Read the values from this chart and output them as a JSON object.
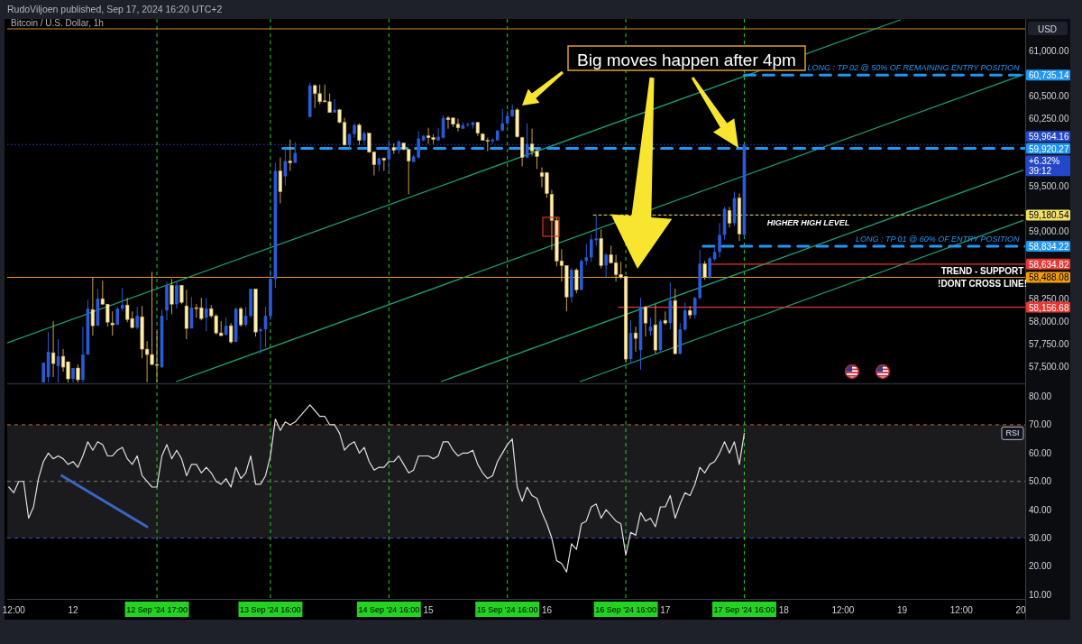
{
  "chart_data": [
    {
      "type": "candlestick",
      "title": "Bitcoin / U.S. Dollar, 1h",
      "ylabel": "USD",
      "x": [
        "2024-09-11T18:00",
        "2024-09-11T19:00",
        "2024-09-11T20:00",
        "2024-09-11T21:00",
        "2024-09-11T22:00",
        "2024-09-11T23:00",
        "2024-09-12T00:00",
        "2024-09-12T01:00",
        "2024-09-12T02:00",
        "2024-09-12T03:00",
        "2024-09-12T04:00",
        "2024-09-12T05:00",
        "2024-09-12T06:00",
        "2024-09-12T07:00",
        "2024-09-12T08:00",
        "2024-09-12T09:00",
        "2024-09-12T10:00",
        "2024-09-12T11:00",
        "2024-09-12T12:00",
        "2024-09-12T13:00",
        "2024-09-12T14:00",
        "2024-09-12T15:00",
        "2024-09-12T16:00",
        "2024-09-12T17:00",
        "2024-09-12T18:00",
        "2024-09-12T19:00",
        "2024-09-12T20:00",
        "2024-09-12T21:00",
        "2024-09-12T22:00",
        "2024-09-12T23:00",
        "2024-09-13T00:00",
        "2024-09-13T01:00",
        "2024-09-13T02:00",
        "2024-09-13T03:00",
        "2024-09-13T04:00",
        "2024-09-13T05:00",
        "2024-09-13T06:00",
        "2024-09-13T07:00",
        "2024-09-13T08:00",
        "2024-09-13T09:00",
        "2024-09-13T10:00",
        "2024-09-13T11:00",
        "2024-09-13T12:00",
        "2024-09-13T13:00",
        "2024-09-13T14:00",
        "2024-09-13T15:00",
        "2024-09-13T16:00",
        "2024-09-13T17:00",
        "2024-09-13T18:00",
        "2024-09-13T19:00",
        "2024-09-13T20:00",
        "2024-09-13T21:00",
        "2024-09-14T00:00",
        "2024-09-14T01:00",
        "2024-09-14T02:00",
        "2024-09-14T03:00",
        "2024-09-14T04:00",
        "2024-09-14T05:00",
        "2024-09-14T06:00",
        "2024-09-14T07:00",
        "2024-09-14T08:00",
        "2024-09-14T09:00",
        "2024-09-14T10:00",
        "2024-09-14T11:00",
        "2024-09-14T12:00",
        "2024-09-14T13:00",
        "2024-09-14T14:00",
        "2024-09-14T15:00",
        "2024-09-14T16:00",
        "2024-09-14T17:00",
        "2024-09-14T18:00",
        "2024-09-14T19:00",
        "2024-09-14T20:00",
        "2024-09-14T21:00",
        "2024-09-14T22:00",
        "2024-09-14T23:00",
        "2024-09-15T00:00",
        "2024-09-15T01:00",
        "2024-09-15T02:00",
        "2024-09-15T03:00",
        "2024-09-15T04:00",
        "2024-09-15T05:00",
        "2024-09-15T06:00",
        "2024-09-15T07:00",
        "2024-09-15T08:00",
        "2024-09-15T09:00",
        "2024-09-15T10:00",
        "2024-09-15T11:00",
        "2024-09-15T12:00",
        "2024-09-15T13:00",
        "2024-09-15T14:00",
        "2024-09-15T15:00",
        "2024-09-15T16:00",
        "2024-09-15T17:00",
        "2024-09-15T18:00",
        "2024-09-15T19:00",
        "2024-09-15T20:00",
        "2024-09-15T21:00",
        "2024-09-15T22:00",
        "2024-09-15T23:00",
        "2024-09-16T00:00",
        "2024-09-16T01:00",
        "2024-09-16T02:00",
        "2024-09-16T03:00",
        "2024-09-16T04:00",
        "2024-09-16T05:00",
        "2024-09-16T06:00",
        "2024-09-16T07:00",
        "2024-09-16T08:00",
        "2024-09-16T09:00",
        "2024-09-16T10:00",
        "2024-09-16T11:00",
        "2024-09-16T12:00",
        "2024-09-16T13:00",
        "2024-09-16T14:00",
        "2024-09-16T15:00",
        "2024-09-16T16:00",
        "2024-09-16T17:00",
        "2024-09-16T18:00",
        "2024-09-16T19:00",
        "2024-09-16T20:00",
        "2024-09-16T21:00",
        "2024-09-16T22:00",
        "2024-09-16T23:00",
        "2024-09-17T00:00",
        "2024-09-17T01:00",
        "2024-09-17T02:00",
        "2024-09-17T03:00",
        "2024-09-17T04:00",
        "2024-09-17T05:00",
        "2024-09-17T06:00",
        "2024-09-17T07:00",
        "2024-09-17T08:00",
        "2024-09-17T09:00",
        "2024-09-17T10:00",
        "2024-09-17T11:00",
        "2024-09-17T12:00",
        "2024-09-17T13:00",
        "2024-09-17T14:00",
        "2024-09-17T15:00",
        "2024-09-17T16:00"
      ],
      "ohlc": [
        [
          57320,
          57540,
          57320,
          57540
        ],
        [
          57380,
          57880,
          57320,
          57660
        ],
        [
          57650,
          58000,
          57380,
          57530
        ],
        [
          57500,
          57800,
          57320,
          57610
        ],
        [
          57610,
          57690,
          57440,
          57490
        ],
        [
          57550,
          57550,
          57320,
          57360
        ],
        [
          57360,
          57480,
          57320,
          57480
        ],
        [
          57480,
          57520,
          57320,
          57350
        ],
        [
          57350,
          57940,
          57320,
          57630
        ],
        [
          57630,
          58240,
          57630,
          58140
        ],
        [
          58130,
          58490,
          57840,
          57950
        ],
        [
          57950,
          58360,
          57950,
          58250
        ],
        [
          58250,
          58450,
          58180,
          58190
        ],
        [
          58190,
          58190,
          57940,
          57990
        ],
        [
          57980,
          58110,
          57840,
          57960
        ],
        [
          57960,
          58160,
          57960,
          58140
        ],
        [
          58140,
          58370,
          58110,
          58180
        ],
        [
          58180,
          58260,
          57990,
          58020
        ],
        [
          58030,
          58110,
          57920,
          57930
        ],
        [
          57930,
          58160,
          57910,
          58060
        ],
        [
          58050,
          58170,
          57590,
          57690
        ],
        [
          57690,
          57780,
          57320,
          57630
        ],
        [
          57630,
          58550,
          57510,
          57520
        ],
        [
          57520,
          57890,
          57320,
          57510
        ],
        [
          57490,
          58130,
          57480,
          58060
        ],
        [
          58120,
          58440,
          58010,
          58400
        ],
        [
          58400,
          58470,
          58080,
          58190
        ],
        [
          58190,
          58450,
          58140,
          58400
        ],
        [
          58400,
          58400,
          58190,
          58210
        ],
        [
          58170,
          58350,
          57800,
          57920
        ],
        [
          57920,
          58270,
          57920,
          58150
        ],
        [
          58150,
          58190,
          58040,
          58140
        ],
        [
          58150,
          58260,
          58010,
          58030
        ],
        [
          58040,
          58260,
          57890,
          58140
        ],
        [
          58140,
          58180,
          58040,
          58060
        ],
        [
          58060,
          58080,
          57850,
          57870
        ],
        [
          57870,
          58000,
          57840,
          57840
        ],
        [
          57850,
          58040,
          57840,
          57950
        ],
        [
          57950,
          57980,
          57750,
          57770
        ],
        [
          57770,
          58150,
          57770,
          58140
        ],
        [
          58140,
          58160,
          57940,
          57960
        ],
        [
          57960,
          58160,
          57940,
          58060
        ],
        [
          58060,
          58360,
          58040,
          58360
        ],
        [
          58360,
          58360,
          57830,
          57880
        ],
        [
          57890,
          57930,
          57640,
          57910
        ],
        [
          57910,
          58160,
          57710,
          58060
        ],
        [
          58060,
          58570,
          58010,
          58470
        ],
        [
          58470,
          59760,
          58370,
          59670
        ],
        [
          59670,
          59820,
          59310,
          59440
        ],
        [
          59610,
          59910,
          59510,
          59780
        ],
        [
          59780,
          60020,
          59670,
          59760
        ],
        [
          59760,
          59990,
          59760,
          59870
        ],
        [
          60270,
          60650,
          60270,
          60620
        ],
        [
          60620,
          60630,
          60370,
          60530
        ],
        [
          60530,
          60630,
          60410,
          60440
        ],
        [
          60450,
          60630,
          60430,
          60440
        ],
        [
          60440,
          60530,
          60320,
          60320
        ],
        [
          60320,
          60470,
          60320,
          60350
        ],
        [
          60350,
          60360,
          60200,
          60210
        ],
        [
          60210,
          60260,
          59950,
          59960
        ],
        [
          59960,
          60090,
          59920,
          60080
        ],
        [
          60080,
          60200,
          60040,
          60180
        ],
        [
          60180,
          60200,
          59960,
          60010
        ],
        [
          60010,
          60110,
          59960,
          60090
        ],
        [
          60090,
          60090,
          59870,
          59880
        ],
        [
          59880,
          59890,
          59620,
          59740
        ],
        [
          59740,
          59820,
          59670,
          59810
        ],
        [
          59810,
          59820,
          59670,
          59790
        ],
        [
          59800,
          60020,
          59670,
          59920
        ],
        [
          59930,
          59980,
          59860,
          59900
        ],
        [
          59900,
          60010,
          59860,
          60000
        ],
        [
          59980,
          59980,
          59900,
          59910
        ],
        [
          59910,
          59910,
          59410,
          59780
        ],
        [
          59770,
          59850,
          59770,
          59830
        ],
        [
          59820,
          60110,
          59810,
          60030
        ],
        [
          60010,
          60070,
          60000,
          60060
        ],
        [
          60060,
          60150,
          59970,
          60040
        ],
        [
          60040,
          60080,
          59970,
          60020
        ],
        [
          60010,
          60150,
          60010,
          60050
        ],
        [
          60040,
          60290,
          60030,
          60260
        ],
        [
          60260,
          60280,
          60140,
          60240
        ],
        [
          60260,
          60260,
          60160,
          60190
        ],
        [
          60190,
          60250,
          60110,
          60150
        ],
        [
          60140,
          60210,
          60140,
          60180
        ],
        [
          60180,
          60210,
          60160,
          60190
        ],
        [
          60180,
          60220,
          60140,
          60210
        ],
        [
          60210,
          60210,
          60060,
          60090
        ],
        [
          60080,
          60090,
          60010,
          60010
        ],
        [
          60010,
          60040,
          59890,
          60000
        ],
        [
          60000,
          60030,
          59970,
          60020
        ],
        [
          60010,
          60120,
          60010,
          60120
        ],
        [
          60120,
          60360,
          60110,
          60200
        ],
        [
          60200,
          60340,
          60170,
          60280
        ],
        [
          60280,
          60410,
          60270,
          60350
        ],
        [
          60350,
          60370,
          60040,
          60050
        ],
        [
          60040,
          60050,
          59720,
          59820
        ],
        [
          59820,
          60200,
          59810,
          59970
        ],
        [
          59970,
          60140,
          59840,
          59890
        ],
        [
          59890,
          59920,
          59690,
          59830
        ],
        [
          59650,
          59710,
          59490,
          59610
        ],
        [
          59650,
          59660,
          59370,
          59420
        ],
        [
          59410,
          59460,
          58790,
          59120
        ],
        [
          59120,
          59160,
          58610,
          58670
        ],
        [
          58670,
          58800,
          58440,
          58620
        ],
        [
          58620,
          58620,
          58110,
          58270
        ],
        [
          58270,
          58590,
          58210,
          58570
        ],
        [
          58570,
          58590,
          58310,
          58350
        ],
        [
          58350,
          58690,
          58340,
          58670
        ],
        [
          58670,
          58860,
          58620,
          58710
        ],
        [
          58710,
          58960,
          58660,
          58910
        ],
        [
          58900,
          59180.54,
          58840,
          58920
        ],
        [
          58920,
          59020,
          58590,
          58620
        ],
        [
          58620,
          58760,
          58490,
          58740
        ],
        [
          58740,
          58840,
          58640,
          58650
        ],
        [
          58650,
          58740,
          58440,
          58520
        ],
        [
          58520,
          58660,
          58470,
          58490
        ],
        [
          58500,
          58500,
          57540,
          57580
        ],
        [
          57580,
          58010,
          57540,
          57870
        ],
        [
          57870,
          57940,
          57660,
          57810
        ],
        [
          57680,
          58260,
          57460,
          58160
        ],
        [
          58160,
          58170,
          57830,
          57980
        ],
        [
          57890,
          58040,
          57840,
          57940
        ],
        [
          57960,
          58190,
          57640,
          57680
        ],
        [
          57680,
          58020,
          57660,
          58000
        ],
        [
          58010,
          58110,
          57960,
          57980
        ],
        [
          57980,
          58430,
          57910,
          58230
        ],
        [
          58230,
          58360,
          57630,
          57640
        ],
        [
          57640,
          57980,
          57630,
          57910
        ],
        [
          57910,
          58210,
          57890,
          58120
        ],
        [
          58120,
          58170,
          58030,
          58070
        ],
        [
          58070,
          58270,
          58030,
          58260
        ],
        [
          58260,
          58790,
          58240,
          58640
        ],
        [
          58640,
          58670,
          58460,
          58490
        ],
        [
          58490,
          58720,
          58470,
          58700
        ],
        [
          58690,
          58810,
          58670,
          58770
        ],
        [
          58770,
          59090,
          58710,
          58960
        ],
        [
          58960,
          59270,
          58910,
          59250
        ],
        [
          59230,
          59270,
          59040,
          59090
        ],
        [
          59090,
          59440,
          59060,
          59370
        ],
        [
          59370,
          59420,
          58890,
          58970
        ],
        [
          58960,
          59970,
          58940,
          59964.16
        ]
      ],
      "xlim": [
        "2024-09-11T10:40",
        "2024-09-20T00:55"
      ],
      "ylim": [
        57320,
        61360
      ],
      "yticks": [
        {
          "value": 57500,
          "label": "57,500.00"
        },
        {
          "value": 57750,
          "label": "57,750.00"
        },
        {
          "value": 58000,
          "label": "58,000.00"
        },
        {
          "value": 58250,
          "label": "58,250.00"
        },
        {
          "value": 59000,
          "label": "59,000.00"
        },
        {
          "value": 59500,
          "label": "59,500.00"
        },
        {
          "value": 60250,
          "label": "60,250.00"
        },
        {
          "value": 60500,
          "label": "60,500.00"
        },
        {
          "value": 61000,
          "label": "61,000.00"
        }
      ],
      "tick_labels": "y",
      "ref_lines": [
        {
          "axis": "y",
          "value": 61250,
          "color": "#d08a2a",
          "line_style": "solid"
        },
        {
          "axis": "y",
          "value": 58488.08,
          "label": "58,488.08",
          "color": "#f39c12",
          "line_style": "solid"
        },
        {
          "axis": "y",
          "value": 59964.16,
          "label": "59,964.16",
          "color": "#2447c9",
          "line_style": "dotted"
        },
        {
          "axis": "x",
          "value": "2024-09-12T17:00",
          "color": "#22d322",
          "line_style": "dashed"
        },
        {
          "axis": "x",
          "value": "2024-09-13T16:00",
          "color": "#22d322",
          "line_style": "dashed"
        },
        {
          "axis": "x",
          "value": "2024-09-14T16:00",
          "color": "#22d322",
          "line_style": "dashed"
        },
        {
          "axis": "x",
          "value": "2024-09-15T16:00",
          "color": "#22d322",
          "line_style": "dashed"
        },
        {
          "axis": "x",
          "value": "2024-09-16T16:00",
          "color": "#22d322",
          "line_style": "dashed"
        },
        {
          "axis": "x",
          "value": "2024-09-17T16:00",
          "color": "#22d322",
          "line_style": "dashed"
        }
      ],
      "series": [
        {
          "type": "line",
          "x": [
            "2024-09-11T10:40",
            "2024-09-18T23:35"
          ],
          "values": [
            57760,
            61350
          ],
          "color": "#1f9e74"
        },
        {
          "type": "line",
          "x": [
            "2024-09-12T21:00",
            "2024-09-20T00:30"
          ],
          "values": [
            57330,
            60740
          ],
          "color": "#1f9e74"
        },
        {
          "type": "line",
          "x": [
            "2024-09-15T02:35",
            "2024-09-20T00:30"
          ],
          "values": [
            57330,
            59680
          ],
          "color": "#1f9e74"
        },
        {
          "type": "line",
          "x": [
            "2024-09-16T06:45",
            "2024-09-20T00:30"
          ],
          "values": [
            57330,
            59120
          ],
          "color": "#1f9e74"
        },
        {
          "type": "line",
          "x": [
            "2024-09-17T16:00",
            "2024-09-20T00:55"
          ],
          "values": [
            60735.14,
            60735.14
          ],
          "color": "#2196f3",
          "line_style": "dashed",
          "value_labels": [
            null,
            "60,735.14"
          ]
        },
        {
          "type": "line",
          "x": [
            "2024-09-13T18:30",
            "2024-09-20T00:55"
          ],
          "values": [
            59920.27,
            59920.27
          ],
          "color": "#2196f3",
          "line_style": "dashed",
          "value_labels": [
            null,
            "59,920.27"
          ]
        },
        {
          "type": "line",
          "x": [
            "2024-09-16T09:25",
            "2024-09-20T00:55"
          ],
          "values": [
            59180.54,
            59180.54
          ],
          "color": "#f0e06a",
          "line_style": "dotted",
          "value_labels": [
            null,
            "59,180.54"
          ]
        },
        {
          "type": "line",
          "x": [
            "2024-09-17T07:40",
            "2024-09-20T00:55"
          ],
          "values": [
            58834.22,
            58834.22
          ],
          "color": "#2196f3",
          "line_style": "dashed",
          "value_labels": [
            null,
            "58,834.22"
          ]
        },
        {
          "type": "line",
          "x": [
            "2024-09-17T09:10",
            "2024-09-20T00:55"
          ],
          "values": [
            58634.82,
            58634.82
          ],
          "color": "#e53935",
          "line_style": "solid",
          "value_labels": [
            null,
            "58,634.82"
          ]
        },
        {
          "type": "line",
          "x": [
            "2024-09-16T14:30",
            "2024-09-20T00:55"
          ],
          "values": [
            58156.68,
            58156.68
          ],
          "color": "#e53935",
          "line_style": "solid",
          "value_labels": [
            null,
            "58,156.68"
          ]
        }
      ],
      "annotations": [
        "RudoViljoen published, Sep 17, 2024 16:20 UTC+2",
        "Big moves happen after 4pm",
        {
          "text": "LONG : TP 02 @ 50% OF REMAINING ENTRY POSITION",
          "x": "2024-09-19T23:45",
          "y": 60735.14
        },
        {
          "text": "HIGHER HIGH LEVEL",
          "x": "2024-09-18T05:00",
          "y": 59180.54
        },
        {
          "text": "LONG : TP 01 @ 60% OF ENTRY POSITION",
          "x": "2024-09-19T23:45",
          "y": 58834.22
        },
        {
          "text": "TREND - SUPPORT",
          "x": "2024-09-19T16:15",
          "y": 58634.82
        },
        {
          "text": "!DONT CROSS LINE!",
          "x": "2024-09-19T16:15",
          "y": 58488.08
        },
        "+6.32%",
        "39:12"
      ]
    },
    {
      "type": "line",
      "series": [
        {
          "name": "RSI",
          "color": "#e0e0e0",
          "x": [
            "2024-09-11T11:00",
            "2024-09-11T12:00",
            "2024-09-11T13:00",
            "2024-09-11T14:00",
            "2024-09-11T15:00",
            "2024-09-11T16:00",
            "2024-09-11T17:00",
            "2024-09-11T18:00",
            "2024-09-11T19:00",
            "2024-09-11T20:00",
            "2024-09-11T21:00",
            "2024-09-11T22:00",
            "2024-09-11T23:00",
            "2024-09-12T00:00",
            "2024-09-12T01:00",
            "2024-09-12T02:00",
            "2024-09-12T03:00",
            "2024-09-12T04:00",
            "2024-09-12T05:00",
            "2024-09-12T06:00",
            "2024-09-12T07:00",
            "2024-09-12T08:00",
            "2024-09-12T09:00",
            "2024-09-12T10:00",
            "2024-09-12T11:00",
            "2024-09-12T12:00",
            "2024-09-12T13:00",
            "2024-09-12T14:00",
            "2024-09-12T15:00",
            "2024-09-12T16:00",
            "2024-09-12T17:00",
            "2024-09-12T18:00",
            "2024-09-12T19:00",
            "2024-09-12T20:00",
            "2024-09-12T21:00",
            "2024-09-12T22:00",
            "2024-09-12T23:00",
            "2024-09-13T00:00",
            "2024-09-13T01:00",
            "2024-09-13T02:00",
            "2024-09-13T03:00",
            "2024-09-13T04:00",
            "2024-09-13T05:00",
            "2024-09-13T06:00",
            "2024-09-13T07:00",
            "2024-09-13T08:00",
            "2024-09-13T09:00",
            "2024-09-13T10:00",
            "2024-09-13T11:00",
            "2024-09-13T12:00",
            "2024-09-13T13:00",
            "2024-09-13T14:00",
            "2024-09-13T15:00",
            "2024-09-13T16:00",
            "2024-09-13T17:00",
            "2024-09-13T18:00",
            "2024-09-13T19:00",
            "2024-09-13T20:00",
            "2024-09-13T21:00",
            "2024-09-14T00:00",
            "2024-09-14T01:00",
            "2024-09-14T02:00",
            "2024-09-14T03:00",
            "2024-09-14T04:00",
            "2024-09-14T05:00",
            "2024-09-14T06:00",
            "2024-09-14T07:00",
            "2024-09-14T08:00",
            "2024-09-14T09:00",
            "2024-09-14T10:00",
            "2024-09-14T11:00",
            "2024-09-14T12:00",
            "2024-09-14T13:00",
            "2024-09-14T14:00",
            "2024-09-14T15:00",
            "2024-09-14T16:00",
            "2024-09-14T17:00",
            "2024-09-14T18:00",
            "2024-09-14T19:00",
            "2024-09-14T20:00",
            "2024-09-14T21:00",
            "2024-09-14T22:00",
            "2024-09-14T23:00",
            "2024-09-15T00:00",
            "2024-09-15T01:00",
            "2024-09-15T02:00",
            "2024-09-15T03:00",
            "2024-09-15T04:00",
            "2024-09-15T05:00",
            "2024-09-15T06:00",
            "2024-09-15T07:00",
            "2024-09-15T08:00",
            "2024-09-15T09:00",
            "2024-09-15T10:00",
            "2024-09-15T11:00",
            "2024-09-15T12:00",
            "2024-09-15T13:00",
            "2024-09-15T14:00",
            "2024-09-15T15:00",
            "2024-09-15T16:00",
            "2024-09-15T17:00",
            "2024-09-15T18:00",
            "2024-09-15T19:00",
            "2024-09-15T20:00",
            "2024-09-15T21:00",
            "2024-09-15T22:00",
            "2024-09-15T23:00",
            "2024-09-16T00:00",
            "2024-09-16T01:00",
            "2024-09-16T02:00",
            "2024-09-16T03:00",
            "2024-09-16T04:00",
            "2024-09-16T05:00",
            "2024-09-16T06:00",
            "2024-09-16T07:00",
            "2024-09-16T08:00",
            "2024-09-16T09:00",
            "2024-09-16T10:00",
            "2024-09-16T11:00",
            "2024-09-16T12:00",
            "2024-09-16T13:00",
            "2024-09-16T14:00",
            "2024-09-16T15:00",
            "2024-09-16T16:00",
            "2024-09-16T17:00",
            "2024-09-16T18:00",
            "2024-09-16T19:00",
            "2024-09-16T20:00",
            "2024-09-16T21:00",
            "2024-09-16T22:00",
            "2024-09-16T23:00",
            "2024-09-17T00:00",
            "2024-09-17T01:00",
            "2024-09-17T02:00",
            "2024-09-17T03:00",
            "2024-09-17T04:00",
            "2024-09-17T05:00",
            "2024-09-17T06:00",
            "2024-09-17T07:00",
            "2024-09-17T08:00",
            "2024-09-17T09:00",
            "2024-09-17T10:00",
            "2024-09-17T11:00",
            "2024-09-17T12:00",
            "2024-09-17T13:00",
            "2024-09-17T14:00",
            "2024-09-17T15:00",
            "2024-09-17T16:00"
          ],
          "values": [
            48,
            46,
            50,
            50,
            37,
            41,
            51,
            57,
            60,
            58,
            59,
            58,
            56,
            57,
            55,
            59,
            64,
            61,
            64,
            63,
            59,
            59,
            61,
            62,
            58,
            56,
            59,
            52,
            50,
            48,
            48,
            59,
            63,
            58,
            61,
            58,
            52,
            56,
            56,
            53,
            55,
            53,
            50,
            49,
            51,
            48,
            55,
            51,
            53,
            59,
            49,
            49,
            52,
            59,
            72,
            68,
            71,
            70,
            71,
            77,
            75,
            73,
            73,
            70,
            70,
            67,
            61,
            63,
            64,
            60,
            62,
            57,
            54,
            55,
            55,
            57,
            57,
            59,
            56,
            53,
            54,
            59,
            59,
            59,
            58,
            59,
            64,
            64,
            61,
            59,
            60,
            60,
            61,
            56,
            53,
            51,
            52,
            57,
            60,
            63,
            65,
            48,
            43,
            48,
            45,
            44,
            39,
            35,
            30,
            22,
            21,
            18,
            28,
            26,
            35,
            36,
            41,
            42,
            37,
            40,
            38,
            36,
            35,
            24,
            32,
            31,
            39,
            36,
            37,
            34,
            41,
            41,
            45,
            37,
            42,
            46,
            45,
            49,
            55,
            53,
            56,
            57,
            60,
            64,
            60,
            64,
            56,
            67
          ]
        },
        {
          "color": "#3a66c4",
          "x": [
            "2024-09-11T21:45",
            "2024-09-12T15:00"
          ],
          "values": [
            52,
            34
          ]
        }
      ],
      "xlim": [
        "2024-09-11T10:40",
        "2024-09-20T00:55"
      ],
      "ylim": [
        8.5,
        84
      ],
      "yticks": [
        {
          "value": 10,
          "label": "10.00"
        },
        {
          "value": 20,
          "label": "20.00"
        },
        {
          "value": 30,
          "label": "30.00"
        },
        {
          "value": 40,
          "label": "40.00"
        },
        {
          "value": 50,
          "label": "50.00"
        },
        {
          "value": 60,
          "label": "60.00"
        },
        {
          "value": 70,
          "label": "70.00"
        },
        {
          "value": 80,
          "label": "80.00"
        }
      ],
      "xticks": [
        {
          "value": "2024-09-11T12:00",
          "label": "12:00"
        },
        {
          "value": "2024-09-12T00:00",
          "label": "12"
        },
        {
          "value": "2024-09-15T00:00",
          "label": "15"
        },
        {
          "value": "2024-09-16T00:00",
          "label": "16"
        },
        {
          "value": "2024-09-17T00:00",
          "label": "17"
        },
        {
          "value": "2024-09-18T00:00",
          "label": "18"
        },
        {
          "value": "2024-09-18T12:00",
          "label": "12:00"
        },
        {
          "value": "2024-09-19T00:00",
          "label": "19"
        },
        {
          "value": "2024-09-19T12:00",
          "label": "12:00"
        },
        {
          "value": "2024-09-20T00:00",
          "label": "20"
        }
      ],
      "bands": [
        {
          "axis": "y",
          "from": 30,
          "to": 70,
          "color": "#1b1b1e"
        }
      ],
      "ref_lines": [
        {
          "axis": "y",
          "value": 70,
          "color": "#c8702a",
          "line_style": "dashed"
        },
        {
          "axis": "y",
          "value": 50,
          "color": "#7a7a7a",
          "line_style": "dashed"
        },
        {
          "axis": "y",
          "value": 30,
          "color": "#3b4fc4",
          "line_style": "dashed"
        },
        {
          "axis": "x",
          "value": "2024-09-12T17:00",
          "label": "12 Sep '24 17:00",
          "color": "#22d322",
          "line_style": "dashed"
        },
        {
          "axis": "x",
          "value": "2024-09-13T16:00",
          "label": "13 Sep '24 16:00",
          "color": "#22d322",
          "line_style": "dashed"
        },
        {
          "axis": "x",
          "value": "2024-09-14T16:00",
          "label": "14 Sep '24 16:00",
          "color": "#22d322",
          "line_style": "dashed"
        },
        {
          "axis": "x",
          "value": "2024-09-15T16:00",
          "label": "15 Sep '24 16:00",
          "color": "#22d322",
          "line_style": "dashed"
        },
        {
          "axis": "x",
          "value": "2024-09-16T16:00",
          "label": "16 Sep '24 16:00",
          "color": "#22d322",
          "line_style": "dashed"
        },
        {
          "axis": "x",
          "value": "2024-09-17T16:00",
          "label": "17 Sep '24 16:00",
          "color": "#22d322",
          "line_style": "dashed"
        }
      ]
    }
  ]
}
